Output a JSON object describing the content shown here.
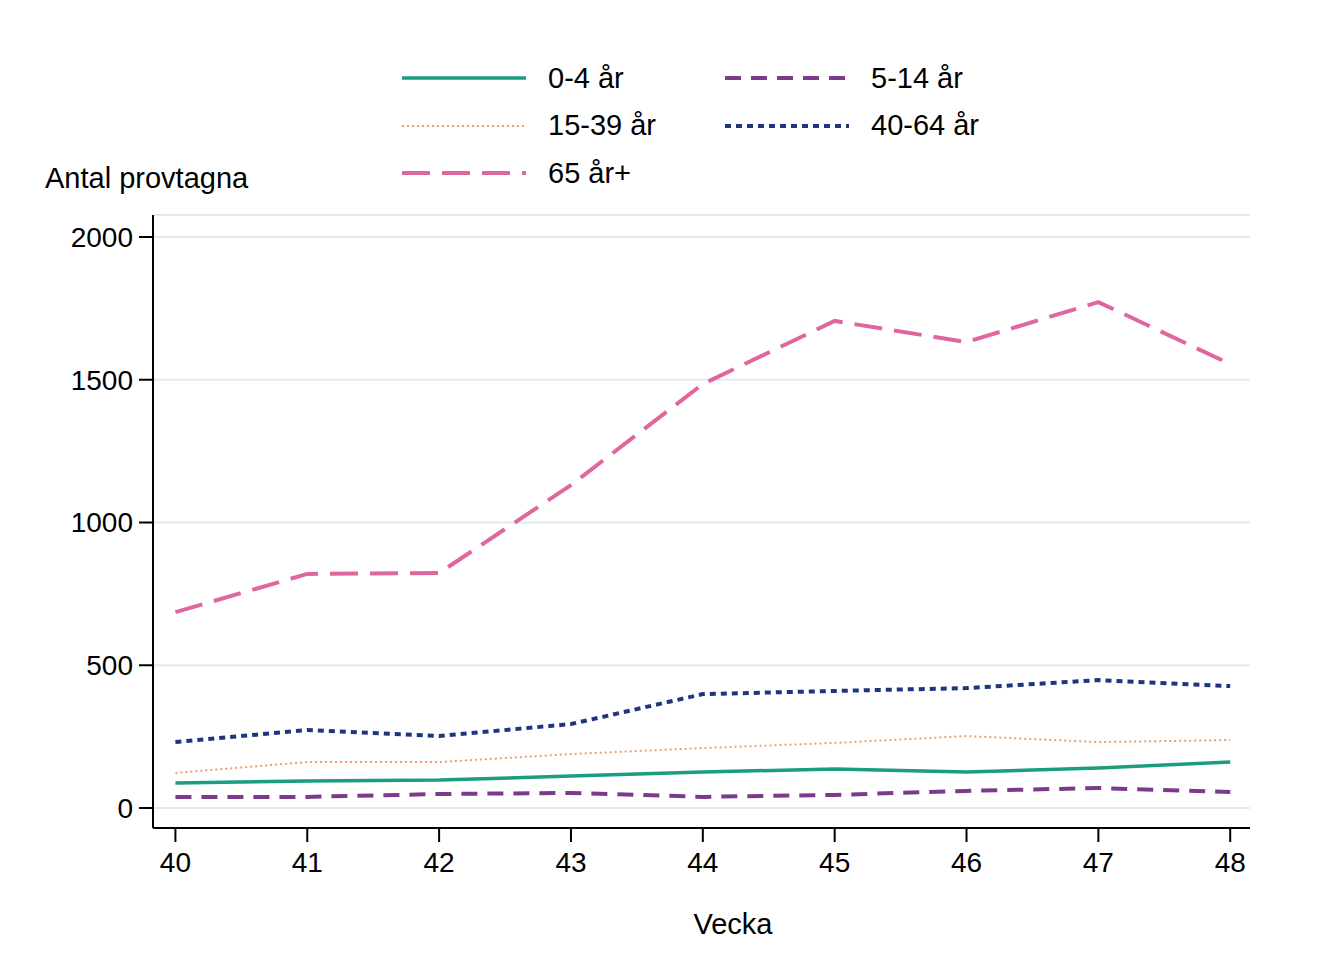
{
  "chart_data": {
    "type": "line",
    "x_label": "Vecka",
    "y_label": "Antal provtagna",
    "x": [
      40,
      41,
      42,
      43,
      44,
      45,
      46,
      47,
      48
    ],
    "xlim": [
      39.83,
      48.15
    ],
    "xticks": [
      40,
      41,
      42,
      43,
      44,
      45,
      46,
      47,
      48
    ],
    "ylim": [
      -70,
      2077
    ],
    "yticks": [
      0,
      500,
      1000,
      1500,
      2000
    ],
    "grid": true,
    "legend": "top",
    "series": [
      {
        "name": "0-4 år",
        "color": "#1a9e80",
        "line_style": "solid",
        "values": [
          88,
          95,
          98,
          112,
          126,
          137,
          126,
          140,
          161
        ]
      },
      {
        "name": "5-14 år",
        "color": "#7b3a8c",
        "line_style": "dashed",
        "values": [
          39,
          39,
          49,
          53,
          39,
          46,
          60,
          70,
          56
        ]
      },
      {
        "name": "15-39 år",
        "color": "#e8a070",
        "line_style": "dotted",
        "values": [
          123,
          161,
          161,
          189,
          210,
          228,
          252,
          231,
          238
        ]
      },
      {
        "name": "40-64 år",
        "color": "#1f3580",
        "line_style": "shortdash",
        "values": [
          231,
          273,
          252,
          294,
          399,
          410,
          420,
          448,
          427
        ]
      },
      {
        "name": "65 år+",
        "color": "#e066a0",
        "line_style": "longdash",
        "values": [
          686,
          820,
          823,
          1131,
          1485,
          1706,
          1632,
          1772,
          1555
        ]
      }
    ]
  }
}
